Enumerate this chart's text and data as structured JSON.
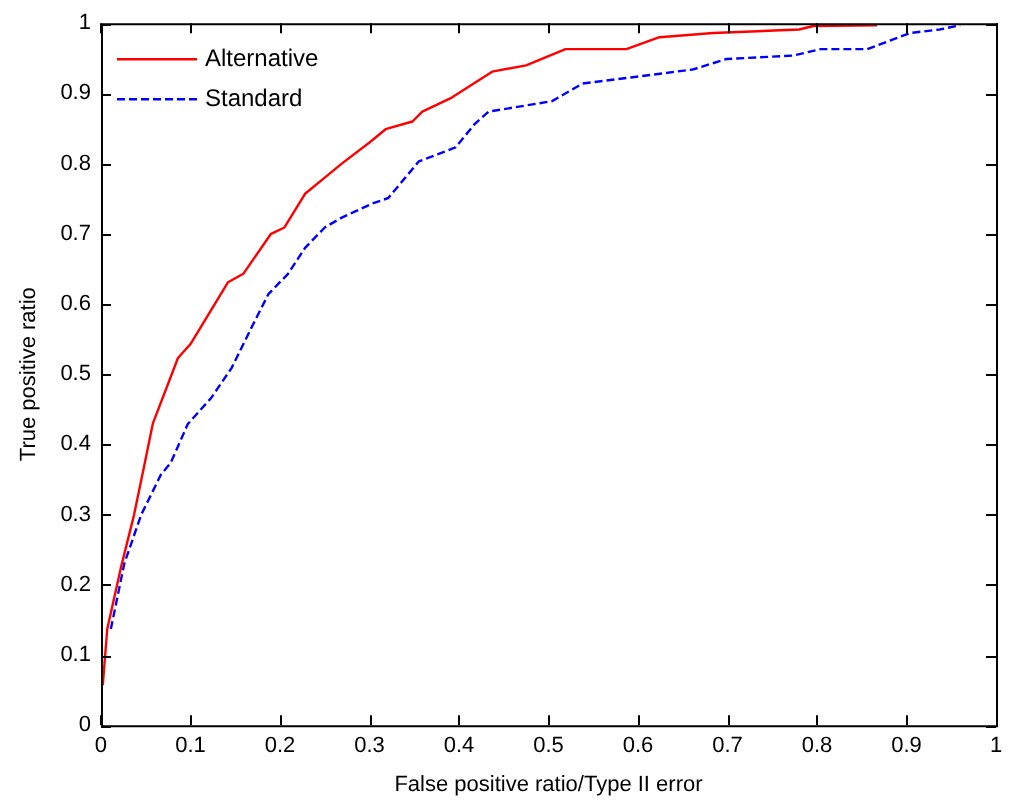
{
  "chart_data": {
    "type": "line",
    "xlabel": "False positive ratio/Type II error",
    "ylabel": "True positive ratio",
    "xlim": [
      0,
      1
    ],
    "ylim": [
      0,
      1
    ],
    "xticks": [
      0,
      0.1,
      0.2,
      0.3,
      0.4,
      0.5,
      0.6,
      0.7,
      0.8,
      0.9,
      1
    ],
    "yticks": [
      0,
      0.1,
      0.2,
      0.3,
      0.4,
      0.5,
      0.6,
      0.7,
      0.8,
      0.9,
      1
    ],
    "grid": false,
    "legend": "top left",
    "marker": "none",
    "series": [
      {
        "name": "Alternative",
        "color": "#ff0000",
        "line_style": "solid",
        "x": [
          0.002,
          0.007,
          0.022,
          0.037,
          0.049,
          0.058,
          0.086,
          0.1,
          0.142,
          0.159,
          0.19,
          0.205,
          0.228,
          0.25,
          0.269,
          0.3,
          0.318,
          0.348,
          0.359,
          0.392,
          0.437,
          0.475,
          0.519,
          0.587,
          0.624,
          0.684,
          0.78,
          0.796,
          0.867
        ],
        "values": [
          0.057,
          0.137,
          0.223,
          0.3,
          0.374,
          0.43,
          0.523,
          0.543,
          0.631,
          0.643,
          0.7,
          0.709,
          0.757,
          0.78,
          0.8,
          0.83,
          0.849,
          0.86,
          0.874,
          0.894,
          0.931,
          0.94,
          0.963,
          0.963,
          0.98,
          0.986,
          0.991,
          0.996,
          0.997
        ]
      },
      {
        "name": "Standard",
        "color": "#0000ff",
        "line_style": "dashed",
        "x": [
          0.011,
          0.026,
          0.045,
          0.067,
          0.078,
          0.097,
          0.123,
          0.146,
          0.168,
          0.187,
          0.209,
          0.228,
          0.25,
          0.269,
          0.303,
          0.321,
          0.34,
          0.355,
          0.396,
          0.418,
          0.433,
          0.504,
          0.538,
          0.594,
          0.661,
          0.699,
          0.774,
          0.804,
          0.856,
          0.904,
          0.937,
          0.96
        ],
        "values": [
          0.137,
          0.23,
          0.3,
          0.357,
          0.374,
          0.429,
          0.466,
          0.509,
          0.566,
          0.614,
          0.643,
          0.68,
          0.709,
          0.723,
          0.743,
          0.751,
          0.78,
          0.803,
          0.823,
          0.857,
          0.874,
          0.889,
          0.914,
          0.923,
          0.934,
          0.949,
          0.954,
          0.963,
          0.963,
          0.986,
          0.991,
          0.997
        ]
      }
    ]
  }
}
